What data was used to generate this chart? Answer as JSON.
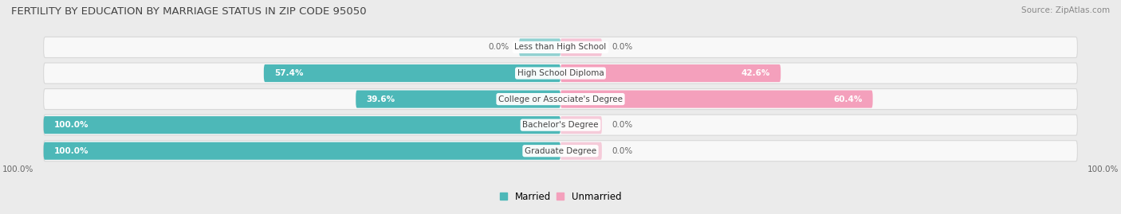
{
  "title": "FERTILITY BY EDUCATION BY MARRIAGE STATUS IN ZIP CODE 95050",
  "source": "Source: ZipAtlas.com",
  "categories": [
    "Less than High School",
    "High School Diploma",
    "College or Associate's Degree",
    "Bachelor's Degree",
    "Graduate Degree"
  ],
  "married": [
    0.0,
    57.4,
    39.6,
    100.0,
    100.0
  ],
  "unmarried": [
    0.0,
    42.6,
    60.4,
    0.0,
    0.0
  ],
  "married_color": "#4db8b8",
  "unmarried_color": "#f4a0bc",
  "bg_color": "#ebebeb",
  "row_bg_color": "#f8f8f8",
  "row_border_color": "#d8d8d8",
  "bar_height": 0.68,
  "figsize": [
    14.06,
    2.69
  ],
  "dpi": 100,
  "legend_married_label": "Married",
  "legend_unmarried_label": "Unmarried",
  "bottom_left_label": "100.0%",
  "bottom_right_label": "100.0%",
  "title_color": "#444444",
  "source_color": "#888888",
  "label_color_inside": "#ffffff",
  "label_color_outside": "#666666"
}
